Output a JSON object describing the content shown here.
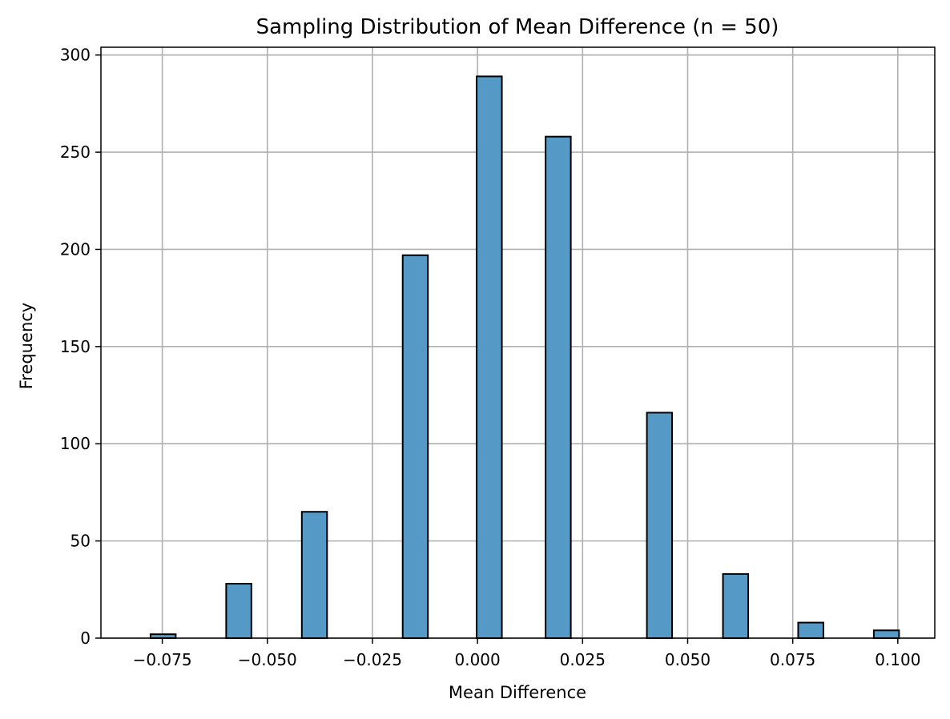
{
  "chart_data": {
    "type": "bar",
    "title": "Sampling Distribution of Mean Difference (n = 50)",
    "xlabel": "Mean Difference",
    "ylabel": "Frequency",
    "xlim": [
      -0.0896,
      0.1088
    ],
    "ylim": [
      0,
      304
    ],
    "grid": true,
    "bar_color": "#5599c7",
    "edge_color": "#000000",
    "grid_color": "#b0b0b0",
    "xticks": [
      -0.075,
      -0.05,
      -0.025,
      0.0,
      0.025,
      0.05,
      0.075,
      0.1
    ],
    "xtick_labels": [
      "−0.075",
      "−0.050",
      "−0.025",
      "0.000",
      "0.025",
      "0.050",
      "0.075",
      "0.100"
    ],
    "yticks": [
      0,
      50,
      100,
      150,
      200,
      250,
      300
    ],
    "ytick_labels": [
      "0",
      "50",
      "100",
      "150",
      "200",
      "250",
      "300"
    ],
    "bins": [
      {
        "x0": -0.0778,
        "x1": -0.0718,
        "value": 2
      },
      {
        "x0": -0.0598,
        "x1": -0.0538,
        "value": 28
      },
      {
        "x0": -0.0418,
        "x1": -0.0358,
        "value": 65
      },
      {
        "x0": -0.0178,
        "x1": -0.0118,
        "value": 197
      },
      {
        "x0": -0.0002,
        "x1": 0.0058,
        "value": 289
      },
      {
        "x0": 0.0162,
        "x1": 0.0222,
        "value": 258
      },
      {
        "x0": 0.0403,
        "x1": 0.0463,
        "value": 116
      },
      {
        "x0": 0.0584,
        "x1": 0.0644,
        "value": 33
      },
      {
        "x0": 0.0763,
        "x1": 0.0823,
        "value": 8
      },
      {
        "x0": 0.0943,
        "x1": 0.1003,
        "value": 4
      }
    ]
  }
}
